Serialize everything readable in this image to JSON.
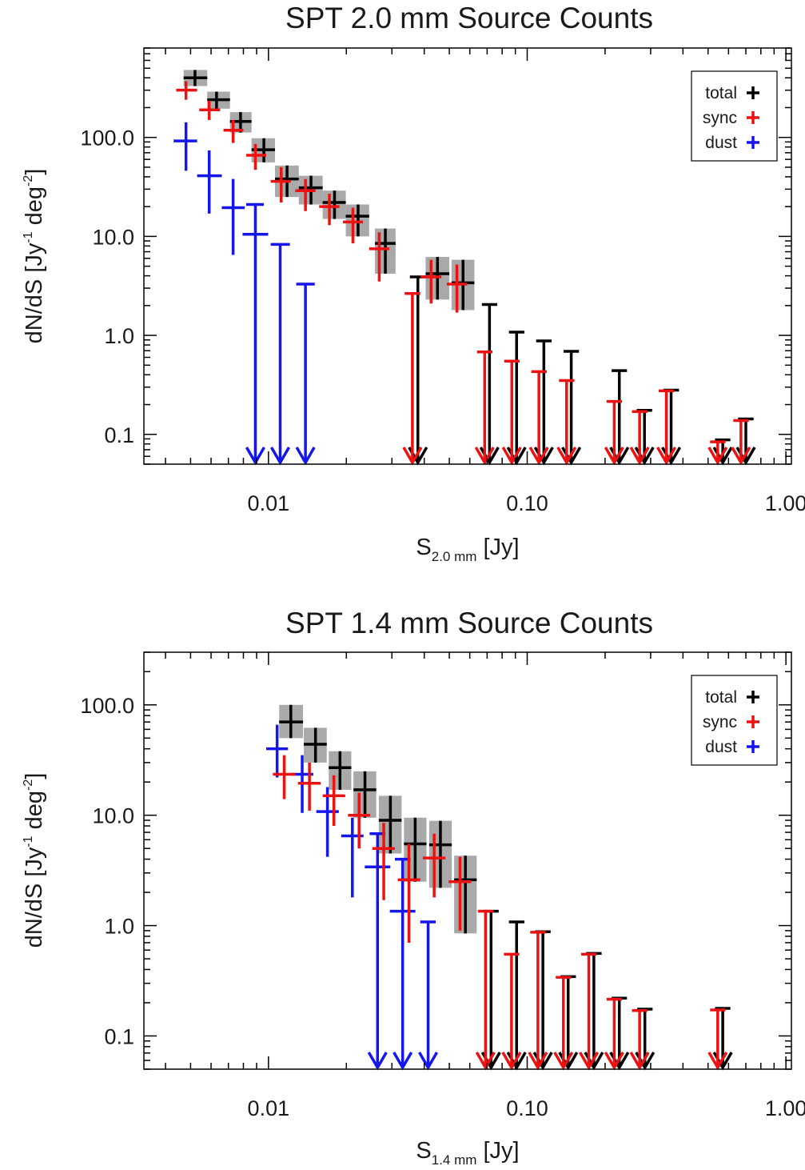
{
  "chart_data": [
    {
      "type": "scatter",
      "title": "SPT 2.0 mm Source Counts",
      "xlabel": {
        "main": "S",
        "sub": "2.0 mm",
        "unit": " [Jy]"
      },
      "ylabel": {
        "pre": "dN/dS [Jy",
        "sup1": "-1",
        "mid": " deg",
        "sup2": "-2",
        "post": "]"
      },
      "xscale": "log",
      "yscale": "log",
      "xlim": [
        0.0033,
        1.05
      ],
      "ylim": [
        0.05,
        800
      ],
      "xticks": [
        {
          "v": 0.01,
          "label": "0.01"
        },
        {
          "v": 0.1,
          "label": "0.10"
        },
        {
          "v": 1.0,
          "label": "1.00"
        }
      ],
      "yticks": [
        {
          "v": 0.1,
          "label": "0.1"
        },
        {
          "v": 1,
          "label": "1.0"
        },
        {
          "v": 10,
          "label": "10.0"
        },
        {
          "v": 100,
          "label": "100.0"
        }
      ],
      "legend": {
        "placement": "top-right",
        "entries": [
          "total",
          "sync",
          "dust"
        ]
      },
      "series": [
        {
          "name": "total",
          "color": "#000000",
          "shaded_band": true,
          "points": [
            {
              "x": 0.0052,
              "xlo": 0.0047,
              "xhi": 0.0058,
              "y": 400,
              "ylo": 330,
              "yhi": 480
            },
            {
              "x": 0.0063,
              "xlo": 0.0058,
              "xhi": 0.0071,
              "y": 240,
              "ylo": 195,
              "yhi": 290
            },
            {
              "x": 0.0078,
              "xlo": 0.0071,
              "xhi": 0.0086,
              "y": 145,
              "ylo": 112,
              "yhi": 180
            },
            {
              "x": 0.0096,
              "xlo": 0.0086,
              "xhi": 0.0106,
              "y": 75,
              "ylo": 56,
              "yhi": 98
            },
            {
              "x": 0.0118,
              "xlo": 0.0106,
              "xhi": 0.0131,
              "y": 38,
              "ylo": 25,
              "yhi": 52
            },
            {
              "x": 0.0146,
              "xlo": 0.0131,
              "xhi": 0.0162,
              "y": 31,
              "ylo": 21,
              "yhi": 41
            },
            {
              "x": 0.018,
              "xlo": 0.0162,
              "xhi": 0.0199,
              "y": 22,
              "ylo": 15,
              "yhi": 29
            },
            {
              "x": 0.0222,
              "xlo": 0.0199,
              "xhi": 0.0245,
              "y": 16,
              "ylo": 10,
              "yhi": 21
            },
            {
              "x": 0.0283,
              "xlo": 0.0258,
              "xhi": 0.031,
              "y": 8.5,
              "ylo": 4.2,
              "yhi": 12
            },
            {
              "x": 0.045,
              "xlo": 0.0405,
              "xhi": 0.05,
              "y": 4.2,
              "ylo": 2.3,
              "yhi": 6.2
            },
            {
              "x": 0.0565,
              "xlo": 0.051,
              "xhi": 0.0625,
              "y": 3.4,
              "ylo": 1.8,
              "yhi": 5.8
            }
          ],
          "upper_limits": [
            {
              "x": 0.0378,
              "xlo": 0.0352,
              "xhi": 0.0406,
              "y": 3.9
            },
            {
              "x": 0.0715,
              "xlo": 0.0668,
              "xhi": 0.0766,
              "y": 2.05
            },
            {
              "x": 0.091,
              "xlo": 0.085,
              "xhi": 0.0975,
              "y": 1.08
            },
            {
              "x": 0.116,
              "xlo": 0.1083,
              "xhi": 0.1242,
              "y": 0.88
            },
            {
              "x": 0.148,
              "xlo": 0.1382,
              "xhi": 0.1585,
              "y": 0.69
            },
            {
              "x": 0.227,
              "xlo": 0.212,
              "xhi": 0.243,
              "y": 0.44
            },
            {
              "x": 0.284,
              "xlo": 0.265,
              "xhi": 0.304,
              "y": 0.175
            },
            {
              "x": 0.36,
              "xlo": 0.336,
              "xhi": 0.386,
              "y": 0.28
            },
            {
              "x": 0.57,
              "xlo": 0.532,
              "xhi": 0.61,
              "y": 0.088
            },
            {
              "x": 0.7,
              "xlo": 0.653,
              "xhi": 0.75,
              "y": 0.143
            }
          ]
        },
        {
          "name": "sync",
          "color": "#ee1111",
          "points": [
            {
              "x": 0.0048,
              "xlo": 0.0044,
              "xhi": 0.0053,
              "y": 300,
              "ylo": 240,
              "yhi": 370
            },
            {
              "x": 0.0059,
              "xlo": 0.0054,
              "xhi": 0.0065,
              "y": 190,
              "ylo": 150,
              "yhi": 235
            },
            {
              "x": 0.0073,
              "xlo": 0.0067,
              "xhi": 0.008,
              "y": 118,
              "ylo": 88,
              "yhi": 150
            },
            {
              "x": 0.0089,
              "xlo": 0.0082,
              "xhi": 0.0098,
              "y": 66,
              "ylo": 47,
              "yhi": 86
            },
            {
              "x": 0.0112,
              "xlo": 0.0102,
              "xhi": 0.0122,
              "y": 36,
              "ylo": 22,
              "yhi": 50
            },
            {
              "x": 0.0139,
              "xlo": 0.0127,
              "xhi": 0.0152,
              "y": 29,
              "ylo": 18,
              "yhi": 38
            },
            {
              "x": 0.0172,
              "xlo": 0.0157,
              "xhi": 0.0188,
              "y": 20,
              "ylo": 13,
              "yhi": 27
            },
            {
              "x": 0.0212,
              "xlo": 0.0194,
              "xhi": 0.0232,
              "y": 14,
              "ylo": 8.5,
              "yhi": 19.5
            },
            {
              "x": 0.0268,
              "xlo": 0.0245,
              "xhi": 0.0293,
              "y": 7.5,
              "ylo": 3.5,
              "yhi": 11
            },
            {
              "x": 0.0425,
              "xlo": 0.0388,
              "xhi": 0.0466,
              "y": 3.9,
              "ylo": 2.1,
              "yhi": 5.8
            },
            {
              "x": 0.0535,
              "xlo": 0.0489,
              "xhi": 0.0586,
              "y": 3.3,
              "ylo": 1.7,
              "yhi": 5.2
            }
          ],
          "upper_limits": [
            {
              "x": 0.036,
              "xlo": 0.0336,
              "xhi": 0.0386,
              "y": 2.65
            },
            {
              "x": 0.0685,
              "xlo": 0.064,
              "xhi": 0.0734,
              "y": 0.68
            },
            {
              "x": 0.0872,
              "xlo": 0.0815,
              "xhi": 0.0935,
              "y": 0.55
            },
            {
              "x": 0.111,
              "xlo": 0.1037,
              "xhi": 0.119,
              "y": 0.43
            },
            {
              "x": 0.142,
              "xlo": 0.1327,
              "xhi": 0.1522,
              "y": 0.35
            },
            {
              "x": 0.217,
              "xlo": 0.2027,
              "xhi": 0.2325,
              "y": 0.215
            },
            {
              "x": 0.272,
              "xlo": 0.2541,
              "xhi": 0.2915,
              "y": 0.17
            },
            {
              "x": 0.345,
              "xlo": 0.3223,
              "xhi": 0.3697,
              "y": 0.275
            },
            {
              "x": 0.545,
              "xlo": 0.5091,
              "xhi": 0.584,
              "y": 0.084
            },
            {
              "x": 0.67,
              "xlo": 0.6259,
              "xhi": 0.718,
              "y": 0.138
            }
          ]
        },
        {
          "name": "dust",
          "color": "#1515ee",
          "points": [
            {
              "x": 0.0048,
              "xlo": 0.0043,
              "xhi": 0.0053,
              "y": 92,
              "ylo": 46,
              "yhi": 142
            },
            {
              "x": 0.0059,
              "xlo": 0.0053,
              "xhi": 0.0066,
              "y": 41,
              "ylo": 17,
              "yhi": 74
            },
            {
              "x": 0.0073,
              "xlo": 0.0066,
              "xhi": 0.0081,
              "y": 19.5,
              "ylo": 6.5,
              "yhi": 38
            }
          ],
          "upper_limits": [
            {
              "x": 0.0089,
              "xlo": 0.0082,
              "xhi": 0.0096,
              "y": 21,
              "ylo_mark": 10.5
            },
            {
              "x": 0.0111,
              "xlo": 0.0102,
              "xhi": 0.0121,
              "y": 8.3
            },
            {
              "x": 0.0139,
              "xlo": 0.0128,
              "xhi": 0.0151,
              "y": 3.3
            }
          ]
        }
      ]
    },
    {
      "type": "scatter",
      "title": "SPT 1.4 mm Source Counts",
      "xlabel": {
        "main": "S",
        "sub": "1.4 mm",
        "unit": " [Jy]"
      },
      "ylabel": {
        "pre": "dN/dS [Jy",
        "sup1": "-1",
        "mid": " deg",
        "sup2": "-2",
        "post": "]"
      },
      "xscale": "log",
      "yscale": "log",
      "xlim": [
        0.0033,
        1.05
      ],
      "ylim": [
        0.05,
        300
      ],
      "xticks": [
        {
          "v": 0.01,
          "label": "0.01"
        },
        {
          "v": 0.1,
          "label": "0.10"
        },
        {
          "v": 1.0,
          "label": "1.00"
        }
      ],
      "yticks": [
        {
          "v": 0.1,
          "label": "0.1"
        },
        {
          "v": 1,
          "label": "1.0"
        },
        {
          "v": 10,
          "label": "10.0"
        },
        {
          "v": 100,
          "label": "100.0"
        }
      ],
      "legend": {
        "placement": "top-right",
        "entries": [
          "total",
          "sync",
          "dust"
        ]
      },
      "series": [
        {
          "name": "total",
          "color": "#000000",
          "shaded_band": true,
          "points": [
            {
              "x": 0.0122,
              "xlo": 0.011,
              "xhi": 0.0136,
              "y": 70,
              "ylo": 50,
              "yhi": 100
            },
            {
              "x": 0.0152,
              "xlo": 0.0137,
              "xhi": 0.0168,
              "y": 44,
              "ylo": 30,
              "yhi": 62
            },
            {
              "x": 0.0189,
              "xlo": 0.0171,
              "xhi": 0.0209,
              "y": 27,
              "ylo": 17,
              "yhi": 38
            },
            {
              "x": 0.0236,
              "xlo": 0.0213,
              "xhi": 0.0261,
              "y": 17,
              "ylo": 9.5,
              "yhi": 25
            },
            {
              "x": 0.0296,
              "xlo": 0.0267,
              "xhi": 0.0327,
              "y": 9,
              "ylo": 4.5,
              "yhi": 15
            },
            {
              "x": 0.0369,
              "xlo": 0.0334,
              "xhi": 0.0408,
              "y": 5.5,
              "ylo": 2.5,
              "yhi": 9.5
            },
            {
              "x": 0.0462,
              "xlo": 0.0418,
              "xhi": 0.0511,
              "y": 5.4,
              "ylo": 2.2,
              "yhi": 8.9
            },
            {
              "x": 0.0577,
              "xlo": 0.0522,
              "xhi": 0.0638,
              "y": 2.6,
              "ylo": 0.85,
              "yhi": 4.3
            }
          ],
          "upper_limits": [
            {
              "x": 0.0725,
              "xlo": 0.0677,
              "xhi": 0.0776,
              "y": 1.35
            },
            {
              "x": 0.091,
              "xlo": 0.085,
              "xhi": 0.0975,
              "y": 1.08
            },
            {
              "x": 0.115,
              "xlo": 0.1074,
              "xhi": 0.1232,
              "y": 0.88
            },
            {
              "x": 0.144,
              "xlo": 0.1345,
              "xhi": 0.1543,
              "y": 0.345
            },
            {
              "x": 0.181,
              "xlo": 0.169,
              "xhi": 0.1939,
              "y": 0.56
            },
            {
              "x": 0.227,
              "xlo": 0.212,
              "xhi": 0.243,
              "y": 0.22
            },
            {
              "x": 0.285,
              "xlo": 0.2662,
              "xhi": 0.3052,
              "y": 0.175
            },
            {
              "x": 0.57,
              "xlo": 0.532,
              "xhi": 0.61,
              "y": 0.178
            }
          ]
        },
        {
          "name": "sync",
          "color": "#ee1111",
          "points": [
            {
              "x": 0.0115,
              "xlo": 0.0104,
              "xhi": 0.0127,
              "y": 23.5,
              "ylo": 14,
              "yhi": 35
            },
            {
              "x": 0.0144,
              "xlo": 0.013,
              "xhi": 0.0159,
              "y": 19.5,
              "ylo": 11,
              "yhi": 30
            },
            {
              "x": 0.0179,
              "xlo": 0.0162,
              "xhi": 0.0198,
              "y": 15,
              "ylo": 8,
              "yhi": 23
            },
            {
              "x": 0.0224,
              "xlo": 0.0203,
              "xhi": 0.0247,
              "y": 10,
              "ylo": 5,
              "yhi": 16
            },
            {
              "x": 0.0279,
              "xlo": 0.0252,
              "xhi": 0.0308,
              "y": 5,
              "ylo": 1.7,
              "yhi": 8.5
            },
            {
              "x": 0.0349,
              "xlo": 0.0316,
              "xhi": 0.0386,
              "y": 2.6,
              "ylo": 0.7,
              "yhi": 5.5
            },
            {
              "x": 0.0437,
              "xlo": 0.0395,
              "xhi": 0.0483,
              "y": 4.1,
              "ylo": 1.8,
              "yhi": 6.8
            },
            {
              "x": 0.055,
              "xlo": 0.0497,
              "xhi": 0.0608,
              "y": 2.5,
              "ylo": 0.9,
              "yhi": 4.2
            }
          ],
          "upper_limits": [
            {
              "x": 0.069,
              "xlo": 0.0645,
              "xhi": 0.0739,
              "y": 1.35
            },
            {
              "x": 0.087,
              "xlo": 0.0813,
              "xhi": 0.0932,
              "y": 0.55
            },
            {
              "x": 0.11,
              "xlo": 0.1027,
              "xhi": 0.1178,
              "y": 0.87
            },
            {
              "x": 0.138,
              "xlo": 0.1289,
              "xhi": 0.1478,
              "y": 0.34
            },
            {
              "x": 0.173,
              "xlo": 0.1616,
              "xhi": 0.1853,
              "y": 0.55
            },
            {
              "x": 0.217,
              "xlo": 0.2027,
              "xhi": 0.2324,
              "y": 0.215
            },
            {
              "x": 0.272,
              "xlo": 0.2541,
              "xhi": 0.2913,
              "y": 0.17
            },
            {
              "x": 0.545,
              "xlo": 0.5091,
              "xhi": 0.5837,
              "y": 0.172
            }
          ]
        },
        {
          "name": "dust",
          "color": "#1515ee",
          "points": [
            {
              "x": 0.0108,
              "xlo": 0.0098,
              "xhi": 0.0119,
              "y": 40,
              "ylo": 22,
              "yhi": 66
            },
            {
              "x": 0.0135,
              "xlo": 0.0122,
              "xhi": 0.0149,
              "y": 23.5,
              "ylo": 10.5,
              "yhi": 35
            },
            {
              "x": 0.0169,
              "xlo": 0.0153,
              "xhi": 0.0187,
              "y": 10.8,
              "ylo": 4.2,
              "yhi": 18
            },
            {
              "x": 0.0211,
              "xlo": 0.0191,
              "xhi": 0.0233,
              "y": 6.5,
              "ylo": 1.8,
              "yhi": 9.5
            }
          ],
          "upper_limits": [
            {
              "x": 0.0264,
              "xlo": 0.0246,
              "xhi": 0.0283,
              "y": 6.8,
              "ylo_mark": 3.4
            },
            {
              "x": 0.033,
              "xlo": 0.0308,
              "xhi": 0.0354,
              "y": 4.0,
              "ylo_mark": 1.35
            },
            {
              "x": 0.0414,
              "xlo": 0.0386,
              "xhi": 0.0443,
              "y": 1.08
            }
          ]
        }
      ]
    }
  ]
}
